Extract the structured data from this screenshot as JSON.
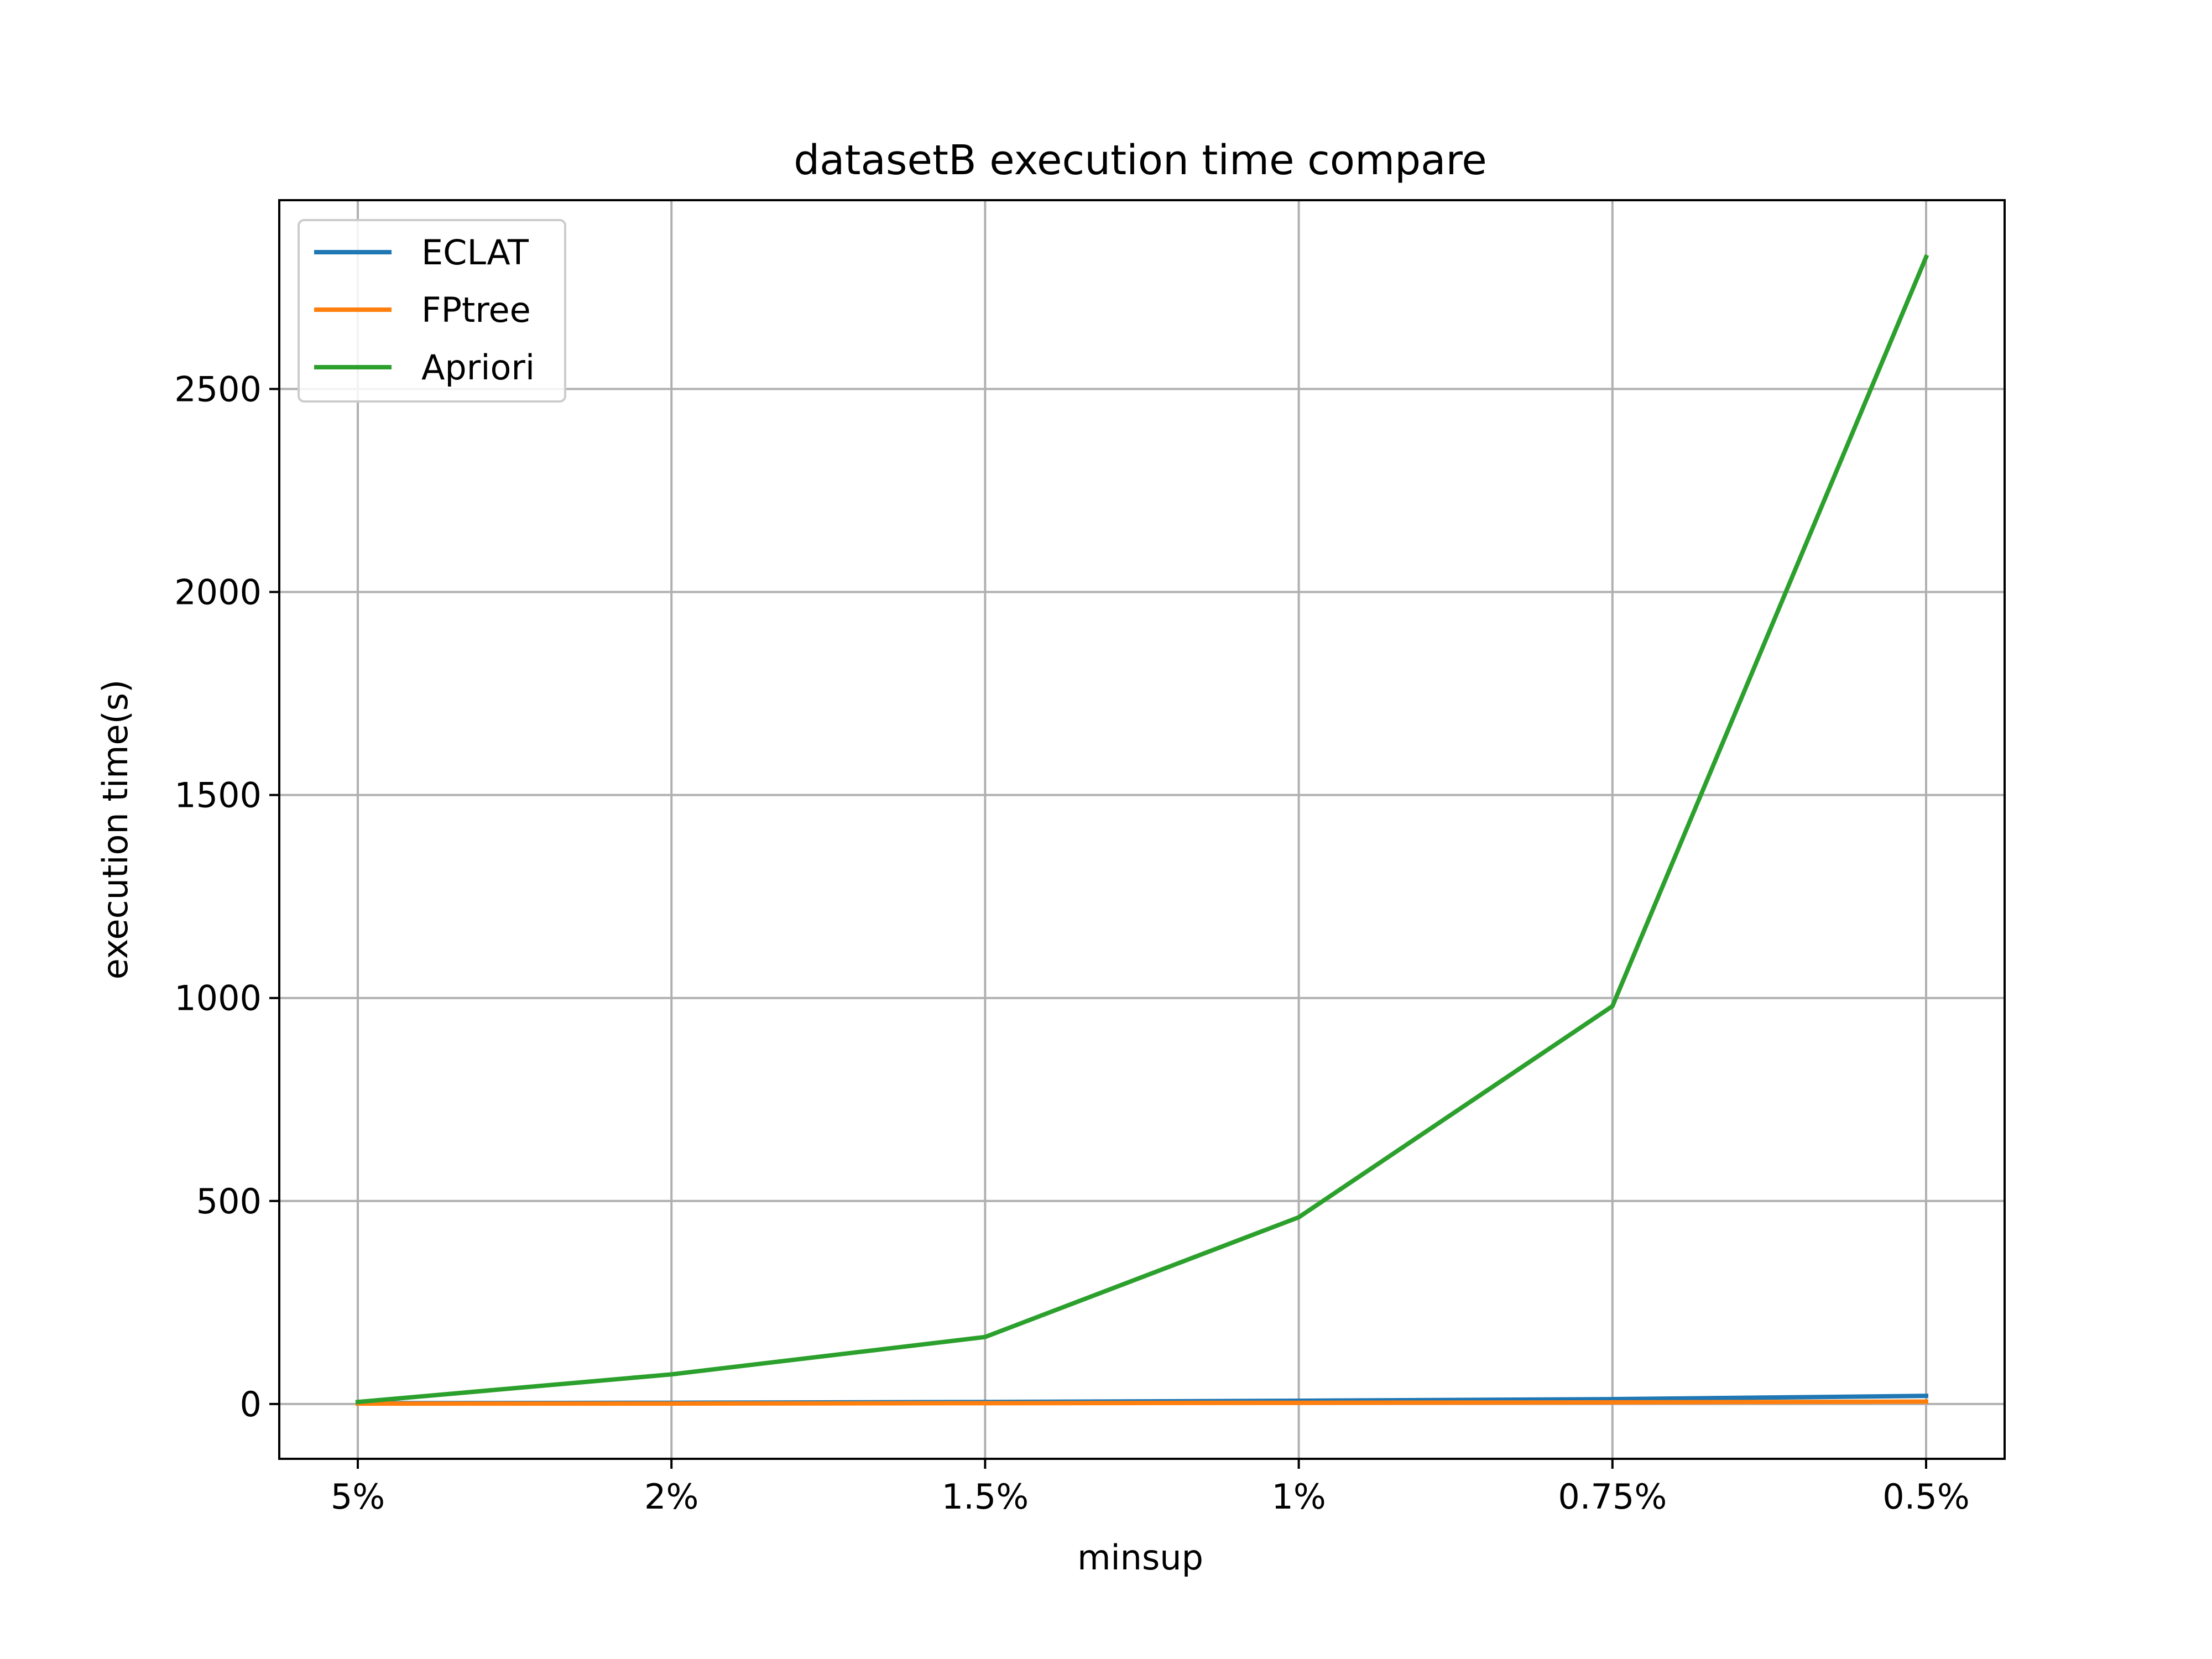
{
  "chart_data": {
    "type": "line",
    "title": "datasetB execution time compare",
    "xlabel": "minsup",
    "ylabel": "execution time(s)",
    "categories": [
      "5%",
      "2%",
      "1.5%",
      "1%",
      "0.75%",
      "0.5%"
    ],
    "series": [
      {
        "name": "ECLAT",
        "color": "#1f77b4",
        "values": [
          2,
          3,
          5,
          8,
          12,
          20
        ]
      },
      {
        "name": "FPtree",
        "color": "#ff7f0e",
        "values": [
          1,
          1,
          2,
          3,
          4,
          6
        ]
      },
      {
        "name": "Apriori",
        "color": "#2ca02c",
        "values": [
          5,
          73,
          165,
          460,
          980,
          2825
        ]
      }
    ],
    "ylim": [
      -135,
      2965
    ],
    "yticks": [
      0,
      500,
      1000,
      1500,
      2000,
      2500
    ],
    "grid": true,
    "legend_position": "top-left"
  }
}
